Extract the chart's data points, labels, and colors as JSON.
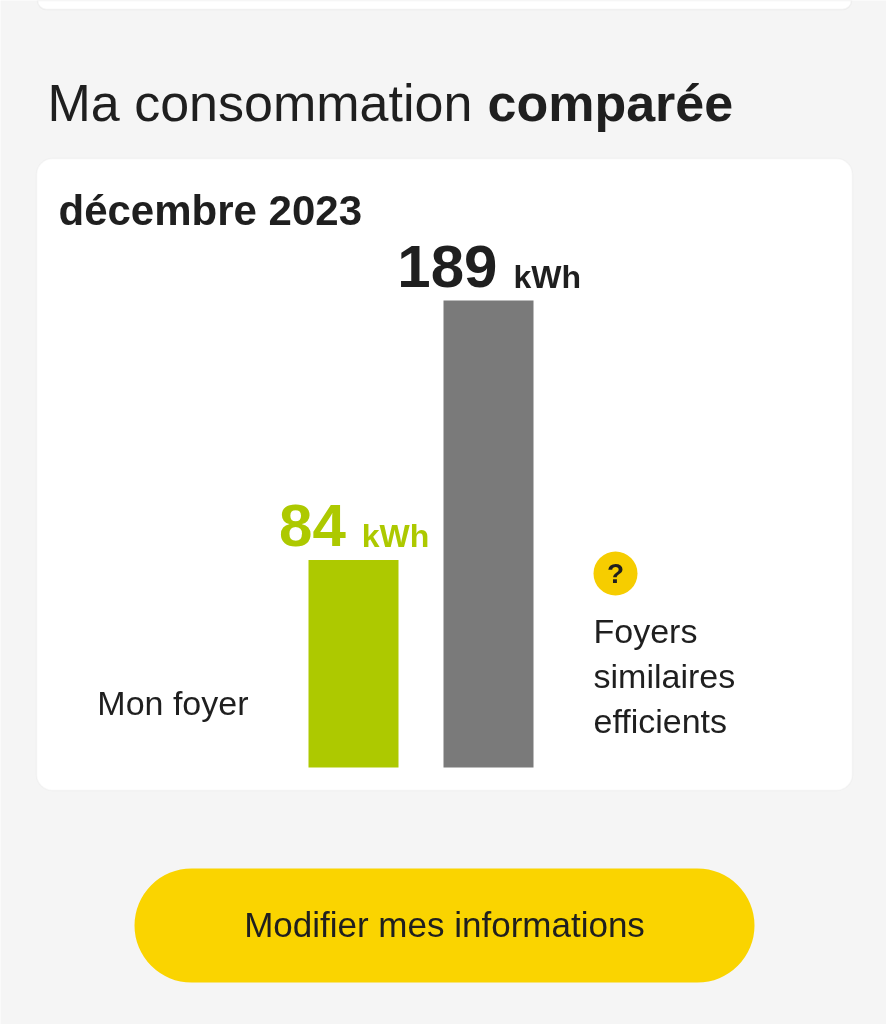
{
  "chart_data": {
    "type": "bar",
    "title": "Ma consommation comparée",
    "subtitle": "décembre 2023",
    "categories": [
      null
    ],
    "series": [
      {
        "name": "Mon foyer",
        "color": "#adc900",
        "values": [
          84
        ],
        "value_labels": [
          "84 kWh"
        ]
      },
      {
        "name": "Foyers similaires efficients",
        "color": "#7a7a7a",
        "values": [
          189
        ],
        "value_labels": [
          "189 kWh"
        ]
      }
    ],
    "annotations": [
      "?",
      "Modifier mes informations"
    ]
  }
}
